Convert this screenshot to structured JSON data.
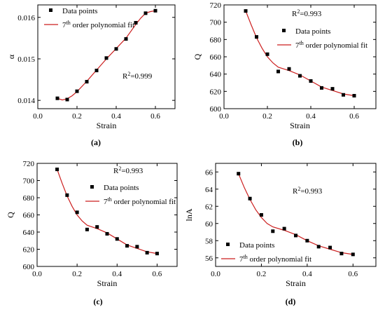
{
  "colors": {
    "fit_line": "#cc1f1f",
    "points": "#000000",
    "axes": "#000000"
  },
  "chart_data": [
    {
      "id": "a",
      "type": "scatter",
      "panel_label": "(a)",
      "xlabel": "Strain",
      "ylabel": "α",
      "xlim": [
        0.0,
        0.7
      ],
      "ylim": [
        0.0138,
        0.0163
      ],
      "xticks": [
        0.0,
        0.2,
        0.4,
        0.6
      ],
      "xtick_labels": [
        "0.0",
        "0.2",
        "0.4",
        "0.6"
      ],
      "yticks": [
        0.014,
        0.015,
        0.016
      ],
      "ytick_labels": [
        "0.014",
        "0.015",
        "0.016"
      ],
      "grid": false,
      "legend_position": "top-left",
      "annotation": "R²=0.999",
      "series": [
        {
          "name": "Data points",
          "kind": "scatter",
          "x": [
            0.1,
            0.15,
            0.2,
            0.25,
            0.3,
            0.35,
            0.4,
            0.45,
            0.5,
            0.55,
            0.6
          ],
          "y": [
            0.01405,
            0.01402,
            0.01422,
            0.01445,
            0.01472,
            0.01502,
            0.01524,
            0.01548,
            0.01587,
            0.0161,
            0.01616
          ]
        },
        {
          "name": "7th order polynomial fit",
          "kind": "line",
          "x": [
            0.1,
            0.125,
            0.15,
            0.175,
            0.2,
            0.25,
            0.3,
            0.35,
            0.4,
            0.45,
            0.5,
            0.525,
            0.55,
            0.575,
            0.6
          ],
          "y": [
            0.01405,
            0.01401,
            0.01404,
            0.01411,
            0.01421,
            0.01446,
            0.01473,
            0.015,
            0.01525,
            0.0155,
            0.01583,
            0.01598,
            0.0161,
            0.01614,
            0.01616
          ]
        }
      ]
    },
    {
      "id": "b",
      "type": "scatter",
      "panel_label": "(b)",
      "xlabel": "Strain",
      "ylabel": "Q",
      "xlim": [
        0.0,
        0.7
      ],
      "ylim": [
        600,
        720
      ],
      "xticks": [
        0.0,
        0.2,
        0.4,
        0.6
      ],
      "xtick_labels": [
        "0.0",
        "0.2",
        "0.4",
        "0.6"
      ],
      "yticks": [
        600,
        620,
        640,
        660,
        680,
        700,
        720
      ],
      "ytick_labels": [
        "600",
        "620",
        "640",
        "660",
        "680",
        "700",
        "720"
      ],
      "grid": false,
      "legend_position": "top-right",
      "annotation": "R²=0.993",
      "series": [
        {
          "name": "Data points",
          "kind": "scatter",
          "x": [
            0.1,
            0.15,
            0.2,
            0.25,
            0.3,
            0.35,
            0.4,
            0.45,
            0.5,
            0.55,
            0.6
          ],
          "y": [
            713,
            683,
            663,
            643,
            646,
            638,
            632,
            624,
            623,
            616,
            615
          ]
        },
        {
          "name": "7th order polynomial fit",
          "kind": "line",
          "x": [
            0.1,
            0.125,
            0.15,
            0.175,
            0.2,
            0.225,
            0.25,
            0.3,
            0.35,
            0.4,
            0.45,
            0.5,
            0.55,
            0.6
          ],
          "y": [
            713,
            697,
            682,
            670,
            660,
            653,
            648,
            644,
            639,
            632,
            625,
            621,
            617,
            615
          ]
        }
      ]
    },
    {
      "id": "c",
      "type": "scatter",
      "panel_label": "(c)",
      "xlabel": "Strain",
      "ylabel": "Q",
      "xlim": [
        0.0,
        0.7
      ],
      "ylim": [
        600,
        720
      ],
      "xticks": [
        0.0,
        0.2,
        0.4,
        0.6
      ],
      "xtick_labels": [
        "0.0",
        "0.2",
        "0.4",
        "0.6"
      ],
      "yticks": [
        600,
        620,
        640,
        660,
        680,
        700,
        720
      ],
      "ytick_labels": [
        "600",
        "620",
        "640",
        "660",
        "680",
        "700",
        "720"
      ],
      "grid": false,
      "legend_position": "top-right",
      "annotation": "R²=0.993",
      "series": [
        {
          "name": "Data points",
          "kind": "scatter",
          "x": [
            0.1,
            0.15,
            0.2,
            0.25,
            0.3,
            0.35,
            0.4,
            0.45,
            0.5,
            0.55,
            0.6
          ],
          "y": [
            713,
            683,
            663,
            643,
            646,
            638,
            632,
            624,
            623,
            616,
            615
          ]
        },
        {
          "name": "7th order polynomial fit",
          "kind": "line",
          "x": [
            0.1,
            0.125,
            0.15,
            0.175,
            0.2,
            0.225,
            0.25,
            0.3,
            0.35,
            0.4,
            0.45,
            0.5,
            0.55,
            0.6
          ],
          "y": [
            713,
            697,
            682,
            670,
            660,
            653,
            648,
            644,
            639,
            632,
            625,
            621,
            617,
            615
          ]
        }
      ]
    },
    {
      "id": "d",
      "type": "scatter",
      "panel_label": "(d)",
      "xlabel": "Strain",
      "ylabel": "lnA",
      "xlim": [
        0.0,
        0.7
      ],
      "ylim": [
        55,
        67
      ],
      "xticks": [
        0.0,
        0.2,
        0.4,
        0.6
      ],
      "xtick_labels": [
        "0.0",
        "0.2",
        "0.4",
        "0.6"
      ],
      "yticks": [
        56,
        58,
        60,
        62,
        64,
        66
      ],
      "ytick_labels": [
        "56",
        "58",
        "60",
        "62",
        "64",
        "66"
      ],
      "grid": false,
      "legend_position": "bottom-left",
      "annotation": "R²=0.993",
      "series": [
        {
          "name": "Data points",
          "kind": "scatter",
          "x": [
            0.1,
            0.15,
            0.2,
            0.25,
            0.3,
            0.35,
            0.4,
            0.45,
            0.5,
            0.55,
            0.6
          ],
          "y": [
            65.8,
            62.9,
            61.0,
            59.1,
            59.4,
            58.6,
            58.0,
            57.3,
            57.2,
            56.5,
            56.4
          ]
        },
        {
          "name": "7th order polynomial fit",
          "kind": "line",
          "x": [
            0.1,
            0.125,
            0.15,
            0.175,
            0.2,
            0.225,
            0.25,
            0.3,
            0.35,
            0.4,
            0.45,
            0.5,
            0.55,
            0.6
          ],
          "y": [
            65.8,
            64.2,
            62.8,
            61.6,
            60.7,
            60.0,
            59.6,
            59.2,
            58.7,
            58.0,
            57.4,
            57.0,
            56.6,
            56.4
          ]
        }
      ]
    }
  ]
}
